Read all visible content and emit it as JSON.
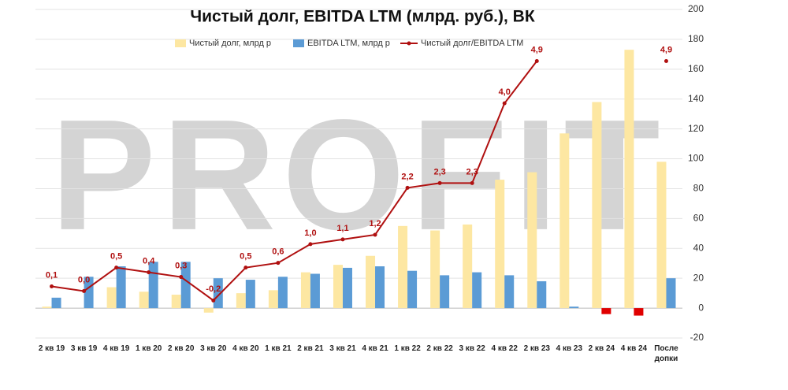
{
  "chart_data": {
    "type": "bar",
    "title": "Чистый долг, EBITDA LTM (млрд. руб.), ВК",
    "watermark": "PROFIT",
    "categories": [
      "2 кв 19",
      "3 кв 19",
      "4 кв 19",
      "1 кв 20",
      "2 кв 20",
      "3 кв 20",
      "4 кв 20",
      "1 кв 21",
      "2 кв 21",
      "3 кв 21",
      "4 кв 21",
      "1 кв 22",
      "2 кв 22",
      "3 кв 22",
      "4 кв 22",
      "2 кв 23",
      "4 кв 23",
      "2 кв 24",
      "4 кв 24",
      "После допки"
    ],
    "series": [
      {
        "name": "Чистый долг, млрд р",
        "color": "#fde7a2",
        "values": [
          1,
          0,
          14,
          11,
          9,
          -3,
          10,
          12,
          24,
          29,
          35,
          55,
          52,
          56,
          86,
          91,
          117,
          138,
          173,
          98
        ]
      },
      {
        "name": "EBITDA LTM, млрд р",
        "color": "#5b9bd5",
        "negative_color": "#e00000",
        "values": [
          7,
          21,
          28,
          31,
          31,
          20,
          19,
          21,
          23,
          27,
          28,
          25,
          22,
          24,
          22,
          18,
          1,
          -4,
          -5,
          20
        ]
      },
      {
        "name": "Чистый долг/EBITDA LTM",
        "type": "line",
        "axis": "y2",
        "color": "#b01010",
        "values": [
          0.1,
          0.0,
          0.5,
          0.4,
          0.3,
          -0.2,
          0.5,
          0.6,
          1.0,
          1.1,
          1.2,
          2.2,
          2.3,
          2.3,
          4.0,
          4.9,
          null,
          null,
          null,
          4.9
        ],
        "value_labels": [
          "0,1",
          "0,0",
          "0,5",
          "0,4",
          "0,3",
          "-0,2",
          "0,5",
          "0,6",
          "1,0",
          "1,1",
          "1,2",
          "2,2",
          "2,3",
          "2,3",
          "4,0",
          "4,9",
          null,
          null,
          null,
          "4,9"
        ]
      }
    ],
    "ylim": [
      -20,
      200
    ],
    "yticks": [
      -20,
      0,
      20,
      40,
      60,
      80,
      100,
      120,
      140,
      160,
      180,
      200
    ],
    "y2lim": [
      -1,
      6
    ],
    "grid": true
  }
}
